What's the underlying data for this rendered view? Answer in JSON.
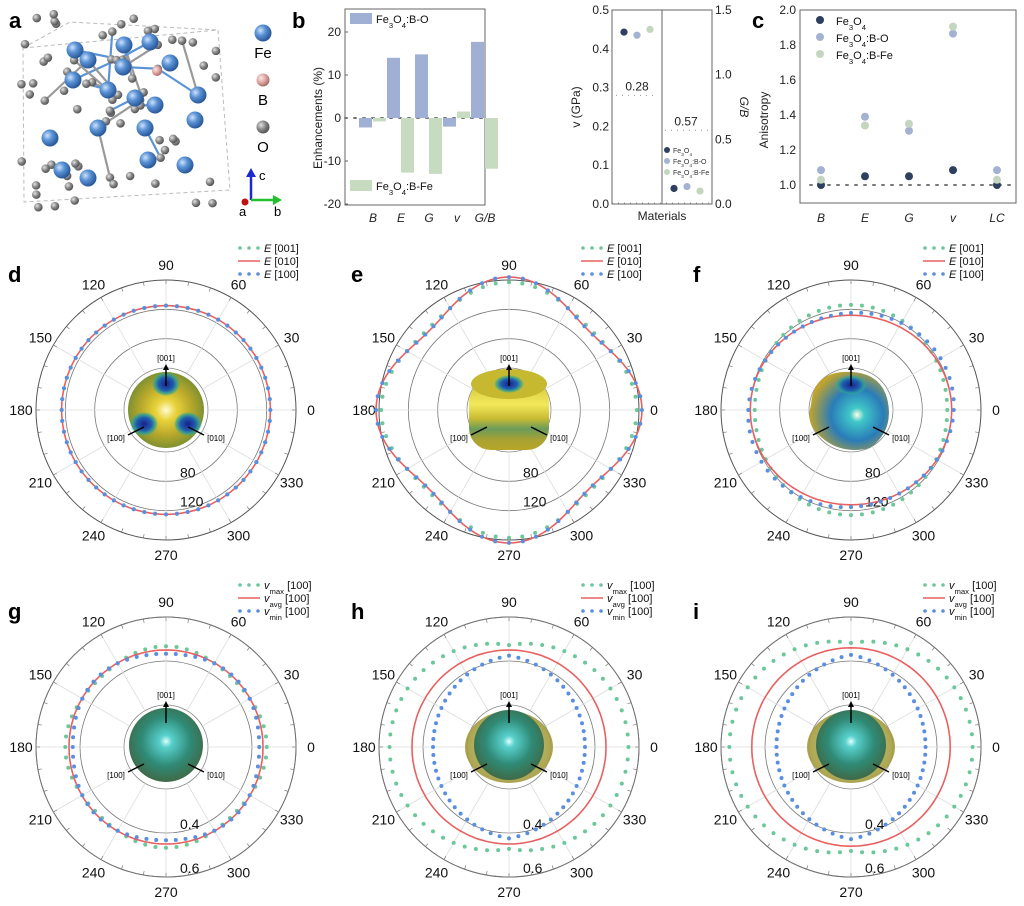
{
  "figure": {
    "panels": [
      "a",
      "b",
      "c",
      "d",
      "e",
      "f",
      "g",
      "h",
      "i"
    ]
  },
  "panel_a": {
    "label": "a",
    "legend": [
      {
        "element": "Fe",
        "color": "#5b93d6"
      },
      {
        "element": "B",
        "color": "#e3a8a4"
      },
      {
        "element": "O",
        "color": "#8a8a8a"
      }
    ],
    "axes": {
      "c": "c",
      "a": "a",
      "b": "b"
    }
  },
  "colors": {
    "bo": "#9fb0d4",
    "bfe": "#c7dbc0",
    "fe3o4": "#2f3f5f",
    "bo_dot": "#a4b2d2",
    "bfe_dot": "#c4d6c0",
    "e001": "#6cc79a",
    "e010": "#e86060",
    "e100": "#5a8ee0"
  },
  "chart_data": [
    {
      "panel": "b",
      "type": "bar",
      "title": "",
      "xlabel": "",
      "ylabel": "Enhancements (%)",
      "ylim": [
        -20,
        20
      ],
      "yticks": [
        "20",
        "10",
        "0",
        "-10",
        "-20"
      ],
      "categories": [
        "B",
        "E",
        "G",
        "v",
        "G/B"
      ],
      "series": [
        {
          "name": "Fe3O4:B-O",
          "label_html": "Fe<sub>3</sub>O<sub>4</sub>:B-O",
          "values": [
            -2.2,
            14.0,
            14.8,
            -2.0,
            17.7
          ]
        },
        {
          "name": "Fe3O4:B-Fe",
          "label_html": "Fe<sub>3</sub>O<sub>4</sub>:B-Fe",
          "values": [
            -0.8,
            -12.7,
            -13.0,
            1.5,
            -11.8
          ]
        }
      ],
      "reference_line": 0
    },
    {
      "panel": "b-inset",
      "type": "scatter",
      "xlabel": "Materials",
      "ylabel_left": "v (GPa)",
      "ylabel_right": "G/B",
      "ylim_left": [
        0,
        0.5
      ],
      "ylim_right": [
        0,
        1.5
      ],
      "yticks_left": [
        "0.0",
        "0.1",
        "0.2",
        "0.3",
        "0.4",
        "0.5"
      ],
      "yticks_right": [
        "0.0",
        "0.5",
        "1.0",
        "1.5"
      ],
      "series": [
        {
          "name": "Fe3O4",
          "v": 0.443,
          "gb": 0.12
        },
        {
          "name": "Fe3O4:B-O",
          "v": 0.435,
          "gb": 0.135
        },
        {
          "name": "Fe3O4:B-Fe",
          "v": 0.45,
          "gb": 0.1
        }
      ],
      "annotations": [
        {
          "text": "0.28",
          "axis": "left",
          "value": 0.28
        },
        {
          "text": "0.57",
          "axis": "right",
          "value": 0.57
        }
      ]
    },
    {
      "panel": "c",
      "type": "scatter",
      "ylabel": "Anisotropy",
      "ylim": [
        0.9,
        2.0
      ],
      "yticks": [
        "2.0",
        "1.8",
        "1.6",
        "1.4",
        "1.2",
        "1.0"
      ],
      "categories": [
        "B",
        "E",
        "G",
        "v",
        "LC"
      ],
      "series": [
        {
          "name": "Fe3O4",
          "values": [
            1.0,
            1.05,
            1.05,
            1.085,
            1.0
          ]
        },
        {
          "name": "Fe3O4:B-O",
          "values": [
            1.085,
            1.39,
            1.31,
            1.865,
            1.085
          ]
        },
        {
          "name": "Fe3O4:B-Fe",
          "values": [
            1.03,
            1.34,
            1.35,
            1.905,
            1.03
          ]
        }
      ],
      "reference_line": 1.0
    },
    {
      "panel": "d",
      "type": "polar",
      "rticks": [
        "80",
        "120"
      ],
      "angle_ticks": [
        "0",
        "30",
        "60",
        "90",
        "120",
        "150",
        "180",
        "210",
        "240",
        "270",
        "300",
        "330"
      ],
      "legend": [
        "E [001]",
        "E [010]",
        "E [100]"
      ],
      "series": [
        {
          "name": "E [001]",
          "mean": 125,
          "amp": 0,
          "mode": "none"
        },
        {
          "name": "E [010]",
          "mean": 125,
          "amp": 0,
          "mode": "none"
        },
        {
          "name": "E [100]",
          "mean": 125,
          "amp": 0,
          "mode": "none"
        }
      ],
      "sphere_labels": [
        "[001]",
        "[100]",
        "[010]"
      ]
    },
    {
      "panel": "e",
      "type": "polar",
      "rticks": [
        "80",
        "120"
      ],
      "angle_ticks": [
        "0",
        "30",
        "60",
        "90",
        "120",
        "150",
        "180",
        "210",
        "240",
        "270",
        "300",
        "330"
      ],
      "legend": [
        "E [001]",
        "E [010]",
        "E [100]"
      ],
      "series": [
        {
          "name": "E [001]",
          "mean": 148,
          "amp": 9,
          "mode": "squareDiag"
        },
        {
          "name": "E [010]",
          "mean": 150,
          "amp": -14,
          "mode": "square"
        },
        {
          "name": "E [100]",
          "mean": 150,
          "amp": -14,
          "mode": "square"
        }
      ],
      "sphere_labels": [
        "[001]",
        "[100]",
        "[010]"
      ]
    },
    {
      "panel": "f",
      "type": "polar",
      "rticks": [
        "80",
        "120"
      ],
      "angle_ticks": [
        "0",
        "30",
        "60",
        "90",
        "120",
        "150",
        "180",
        "210",
        "240",
        "270",
        "300",
        "330"
      ],
      "legend": [
        "E [001]",
        "E [010]",
        "E [100]"
      ],
      "series": [
        {
          "name": "E [001]",
          "mean": 120,
          "amp": 6,
          "mode": "ellipseV"
        },
        {
          "name": "E [010]",
          "mean": 116,
          "amp": -4,
          "mode": "ellipseV"
        },
        {
          "name": "E [100]",
          "mean": 119,
          "amp": 5,
          "mode": "tilt"
        }
      ],
      "sphere_labels": [
        "[001]",
        "[100]",
        "[010]"
      ]
    },
    {
      "panel": "g",
      "type": "polar",
      "rticks": [
        "0.4",
        "0.6"
      ],
      "angle_ticks": [
        "0",
        "30",
        "60",
        "90",
        "120",
        "150",
        "180",
        "210",
        "240",
        "270",
        "300",
        "330"
      ],
      "legend": [
        "vmax [100]",
        "vavg [100]",
        "vmin [100]"
      ],
      "series": [
        {
          "name": "vmax [100]",
          "mean": 0.455,
          "amp": 0.012,
          "mode": "squareDiag"
        },
        {
          "name": "vavg [100]",
          "mean": 0.45,
          "amp": 0,
          "mode": "none"
        },
        {
          "name": "vmin [100]",
          "mean": 0.443,
          "amp": -0.01,
          "mode": "squareDiag"
        }
      ],
      "sphere_labels": [
        "[001]",
        "[100]",
        "[010]"
      ]
    },
    {
      "panel": "h",
      "type": "polar",
      "rticks": [
        "0.4",
        "0.6"
      ],
      "angle_ticks": [
        "0",
        "30",
        "60",
        "90",
        "120",
        "150",
        "180",
        "210",
        "240",
        "270",
        "300",
        "330"
      ],
      "legend": [
        "vmax [100]",
        "vavg [100]",
        "vmin [100]"
      ],
      "series": [
        {
          "name": "vmax [100]",
          "mean": 0.5,
          "amp": 0.08,
          "mode": "horiz"
        },
        {
          "name": "vavg [100]",
          "mean": 0.45,
          "amp": 0,
          "mode": "none"
        },
        {
          "name": "vmin [100]",
          "mean": 0.4,
          "amp": -0.07,
          "mode": "horiz"
        }
      ],
      "sphere_labels": [
        "[001]",
        "[100]",
        "[010]"
      ]
    },
    {
      "panel": "i",
      "type": "polar",
      "rticks": [
        "0.4",
        "0.6"
      ],
      "angle_ticks": [
        "0",
        "30",
        "60",
        "90",
        "120",
        "150",
        "180",
        "210",
        "240",
        "270",
        "300",
        "330"
      ],
      "legend": [
        "vmax [100]",
        "vavg [100]",
        "vmin [100]"
      ],
      "series": [
        {
          "name": "vmax [100]",
          "mean": 0.51,
          "amp": 0.08,
          "mode": "horiz"
        },
        {
          "name": "vavg [100]",
          "mean": 0.46,
          "amp": 0,
          "mode": "none"
        },
        {
          "name": "vmin [100]",
          "mean": 0.4,
          "amp": -0.08,
          "mode": "horiz"
        }
      ],
      "sphere_labels": [
        "[001]",
        "[100]",
        "[010]"
      ]
    }
  ]
}
